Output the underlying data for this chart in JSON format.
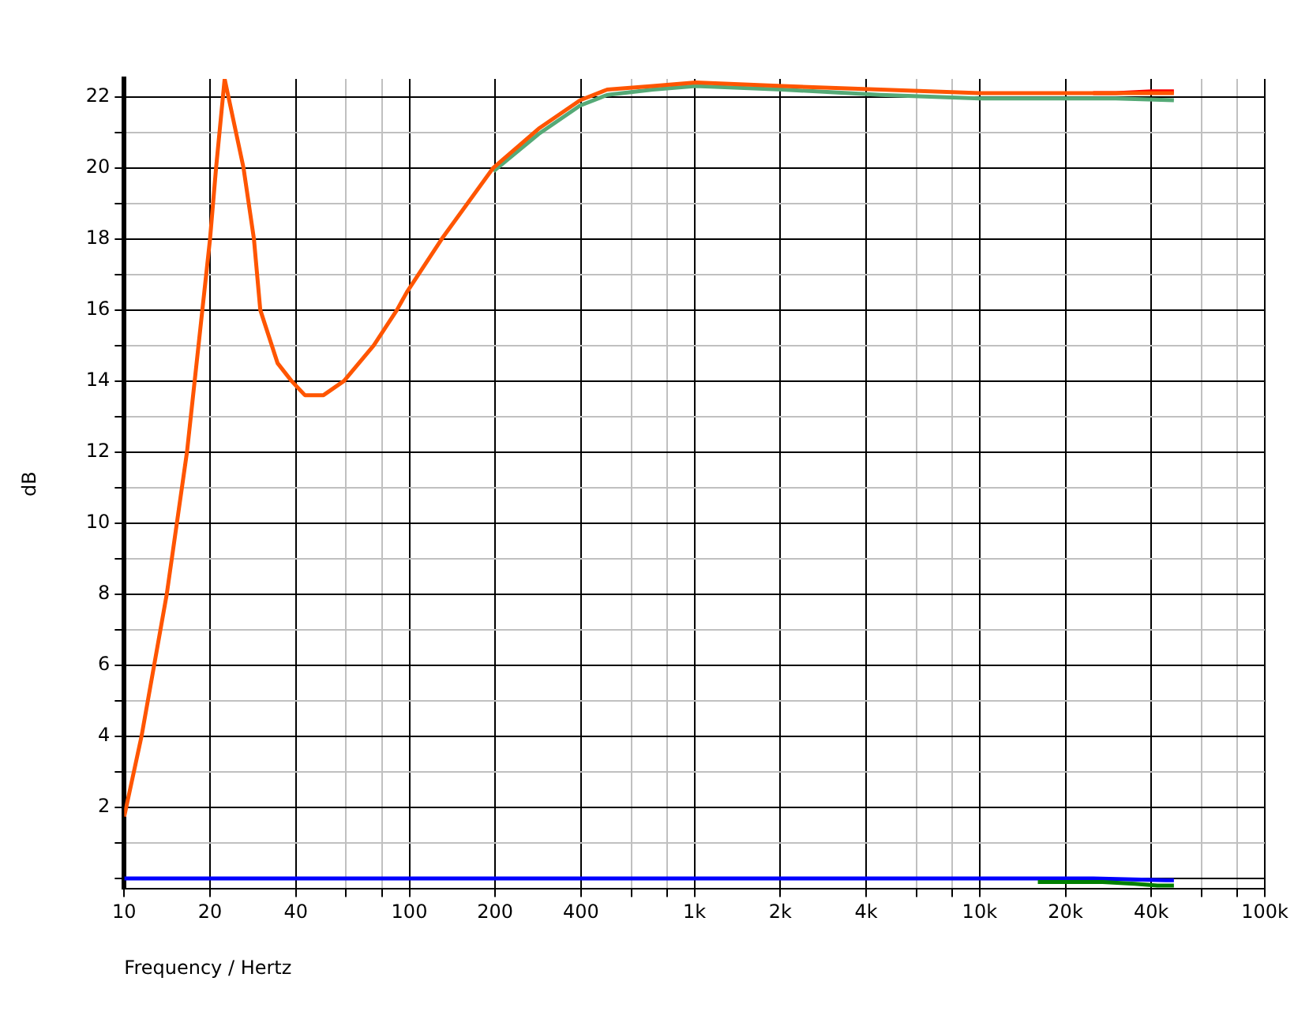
{
  "chart_data": {
    "type": "line",
    "xlabel": "Frequency / Hertz",
    "ylabel": "dB",
    "log": "x",
    "grid": true,
    "legend": false,
    "marker": "none",
    "line_style": "solid",
    "xlim": [
      10,
      100000
    ],
    "ylim": [
      -0.3,
      22.5
    ],
    "xticks": [
      10,
      20,
      40,
      {
        "value": 60,
        "label": null
      },
      {
        "value": 80,
        "label": null
      },
      100,
      200,
      400,
      {
        "value": 600,
        "label": null
      },
      {
        "value": 800,
        "label": null
      },
      {
        "value": 1000,
        "label": "1k"
      },
      {
        "value": 2000,
        "label": "2k"
      },
      {
        "value": 4000,
        "label": "4k"
      },
      {
        "value": 6000,
        "label": null
      },
      {
        "value": 8000,
        "label": null
      },
      {
        "value": 10000,
        "label": "10k"
      },
      {
        "value": 20000,
        "label": "20k"
      },
      {
        "value": 40000,
        "label": "40k"
      },
      {
        "value": 60000,
        "label": null
      },
      {
        "value": 80000,
        "label": null
      },
      {
        "value": 100000,
        "label": "100k"
      }
    ],
    "yticks": [
      {
        "value": 0,
        "label": null
      },
      {
        "value": 1,
        "label": null
      },
      2,
      {
        "value": 3,
        "label": null
      },
      4,
      {
        "value": 5,
        "label": null
      },
      6,
      {
        "value": 7,
        "label": null
      },
      8,
      {
        "value": 9,
        "label": null
      },
      10,
      {
        "value": 11,
        "label": null
      },
      12,
      {
        "value": 13,
        "label": null
      },
      14,
      {
        "value": 15,
        "label": null
      },
      16,
      {
        "value": 17,
        "label": null
      },
      18,
      {
        "value": 19,
        "label": null
      },
      20,
      {
        "value": 21,
        "label": null
      },
      22
    ],
    "series": [
      {
        "color": "#0000ff",
        "x": [
          10,
          100,
          1000,
          10000,
          25000,
          45000,
          48000
        ],
        "values": [
          0,
          0,
          0,
          0,
          0,
          -0.05,
          -0.05
        ]
      },
      {
        "color": "#008000",
        "x": [
          16000,
          27000,
          35000,
          42000,
          48000
        ],
        "values": [
          -0.1,
          -0.1,
          -0.15,
          -0.2,
          -0.2
        ]
      },
      {
        "color": "#55aa77",
        "x": [
          197,
          284,
          397,
          494,
          714,
          1010,
          2040,
          4500,
          6700,
          10000,
          20000,
          30000,
          48000
        ],
        "values": [
          19.9,
          20.95,
          21.75,
          22.05,
          22.2,
          22.3,
          22.2,
          22.05,
          22.0,
          21.95,
          21.95,
          21.95,
          21.9
        ]
      },
      {
        "color": "#ff0000",
        "x": [
          25000,
          30000,
          40000,
          48000
        ],
        "values": [
          22.1,
          22.1,
          22.15,
          22.15
        ]
      },
      {
        "color": "#ff5500",
        "x": [
          10,
          11.5,
          14.1,
          16.6,
          20,
          21,
          22.5,
          26.2,
          28.5,
          30,
          34.5,
          38.6,
          43,
          50,
          59,
          75,
          90.5,
          98,
          130,
          197,
          284,
          397,
          494,
          714,
          1010,
          2040,
          4500,
          6700,
          10000,
          20000,
          30000,
          48000
        ],
        "values": [
          1.74,
          4,
          8,
          12,
          18,
          20,
          22.5,
          20,
          18,
          16,
          14.5,
          14,
          13.6,
          13.6,
          14,
          15,
          16,
          16.5,
          18,
          20.0,
          21.1,
          21.9,
          22.2,
          22.3,
          22.4,
          22.3,
          22.2,
          22.15,
          22.1,
          22.1,
          22.1,
          22.1
        ]
      }
    ]
  }
}
